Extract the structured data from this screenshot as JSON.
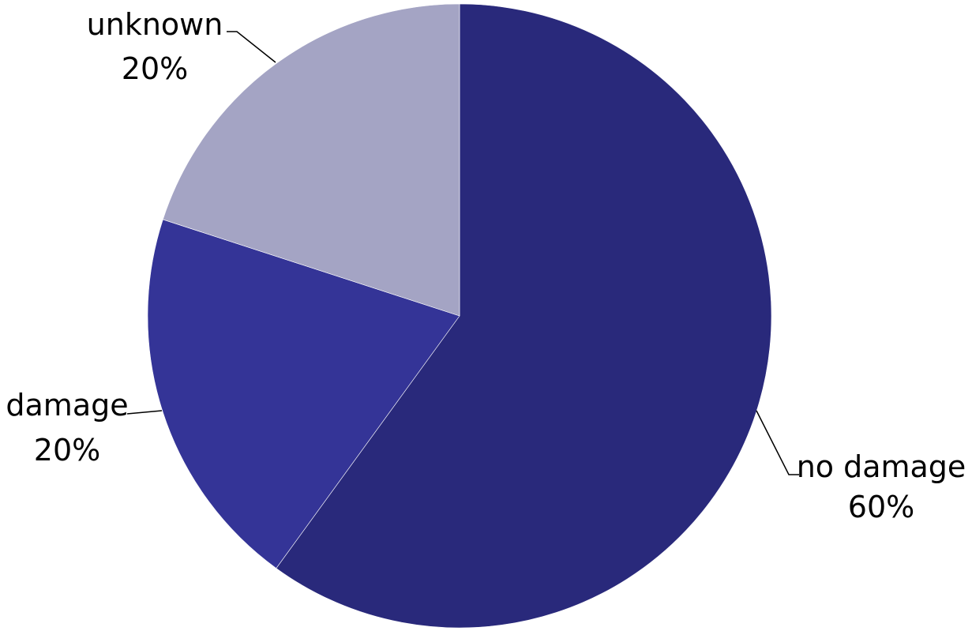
{
  "chart_data": {
    "type": "pie",
    "title": "",
    "labels": [
      "no damage",
      "damage",
      "unknown"
    ],
    "values": [
      60,
      20,
      20
    ],
    "percent_labels": [
      "60%",
      "20%",
      "20%"
    ],
    "colors": [
      "#29297B",
      "#343497",
      "#A4A4C4"
    ],
    "start": "12 o'clock",
    "direction": "clockwise",
    "legend": "none",
    "data_labels": "outside with leader lines"
  }
}
